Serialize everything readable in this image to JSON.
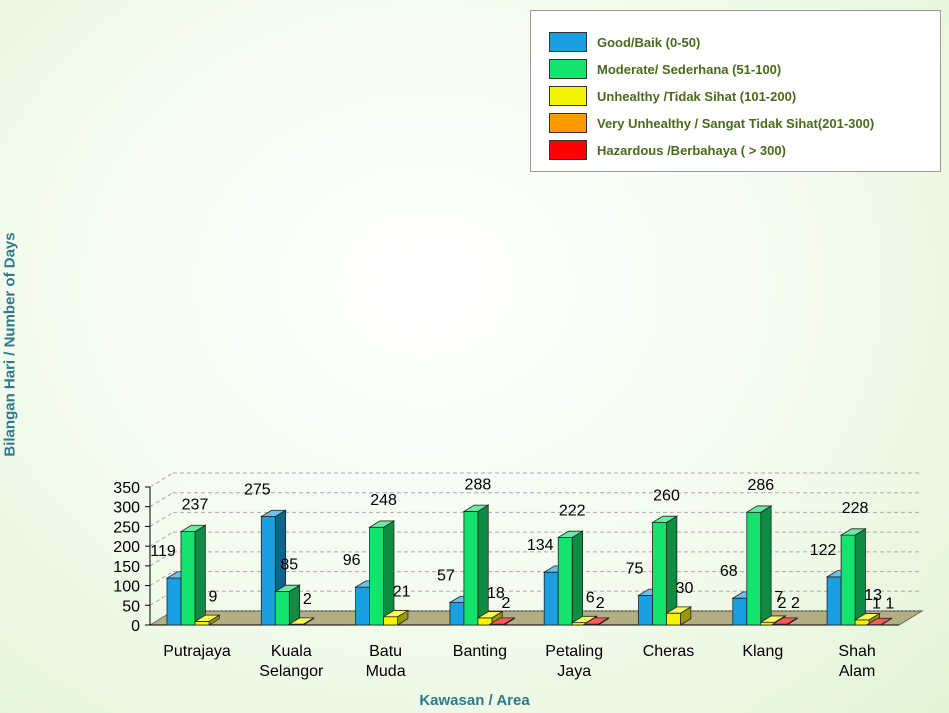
{
  "chart_data": {
    "type": "bar",
    "xlabel_part1": "Kawasan / ",
    "xlabel_part2": "Area",
    "ylabel": "Bilangan Hari / Number of Days",
    "ylim": [
      0,
      350
    ],
    "yticks": [
      0,
      50,
      100,
      150,
      200,
      250,
      300,
      350
    ],
    "categories": [
      [
        "Putrajaya"
      ],
      [
        "Kuala",
        "Selangor"
      ],
      [
        "Batu",
        "Muda"
      ],
      [
        "Banting"
      ],
      [
        "Petaling",
        "Jaya"
      ],
      [
        "Cheras"
      ],
      [
        "Klang"
      ],
      [
        "Shah",
        "Alam"
      ]
    ],
    "series": [
      {
        "name": "Good/Baik (0-50)",
        "color": "#1aa0e0",
        "values": [
          119,
          275,
          96,
          57,
          134,
          75,
          68,
          122
        ]
      },
      {
        "name": "Moderate/ Sederhana (51-100)",
        "color": "#16e26e",
        "values": [
          237,
          85,
          248,
          288,
          222,
          260,
          286,
          228
        ]
      },
      {
        "name": "Unhealthy /Tidak Sihat (101-200)",
        "color": "#f5f500",
        "values": [
          9,
          2,
          21,
          18,
          6,
          30,
          7,
          13
        ]
      },
      {
        "name": "Very  Unhealthy / Sangat Tidak Sihat(201-300)",
        "color": "#ff9900",
        "values": [
          0,
          0,
          0,
          0,
          0,
          0,
          0,
          0
        ]
      },
      {
        "name": "Hazardous /Berbahaya ( > 300)",
        "color": "#ff0000",
        "values": [
          0,
          0,
          0,
          2,
          2,
          0,
          2,
          1
        ]
      }
    ],
    "labels": [
      [
        "119",
        "237",
        "9",
        null,
        null
      ],
      [
        "275",
        "85",
        "2",
        null,
        null
      ],
      [
        "96",
        "248",
        "21",
        null,
        null
      ],
      [
        "57",
        "288",
        "18",
        null,
        "2"
      ],
      [
        "134",
        "222",
        "6",
        null,
        "2"
      ],
      [
        "75",
        "260",
        "30",
        null,
        null
      ],
      [
        "68",
        "286",
        "7",
        null,
        "2 2"
      ],
      [
        "122",
        "228",
        "13",
        null,
        "1 1"
      ]
    ],
    "grid": true,
    "legend_position": "top-right",
    "render3d": true
  }
}
